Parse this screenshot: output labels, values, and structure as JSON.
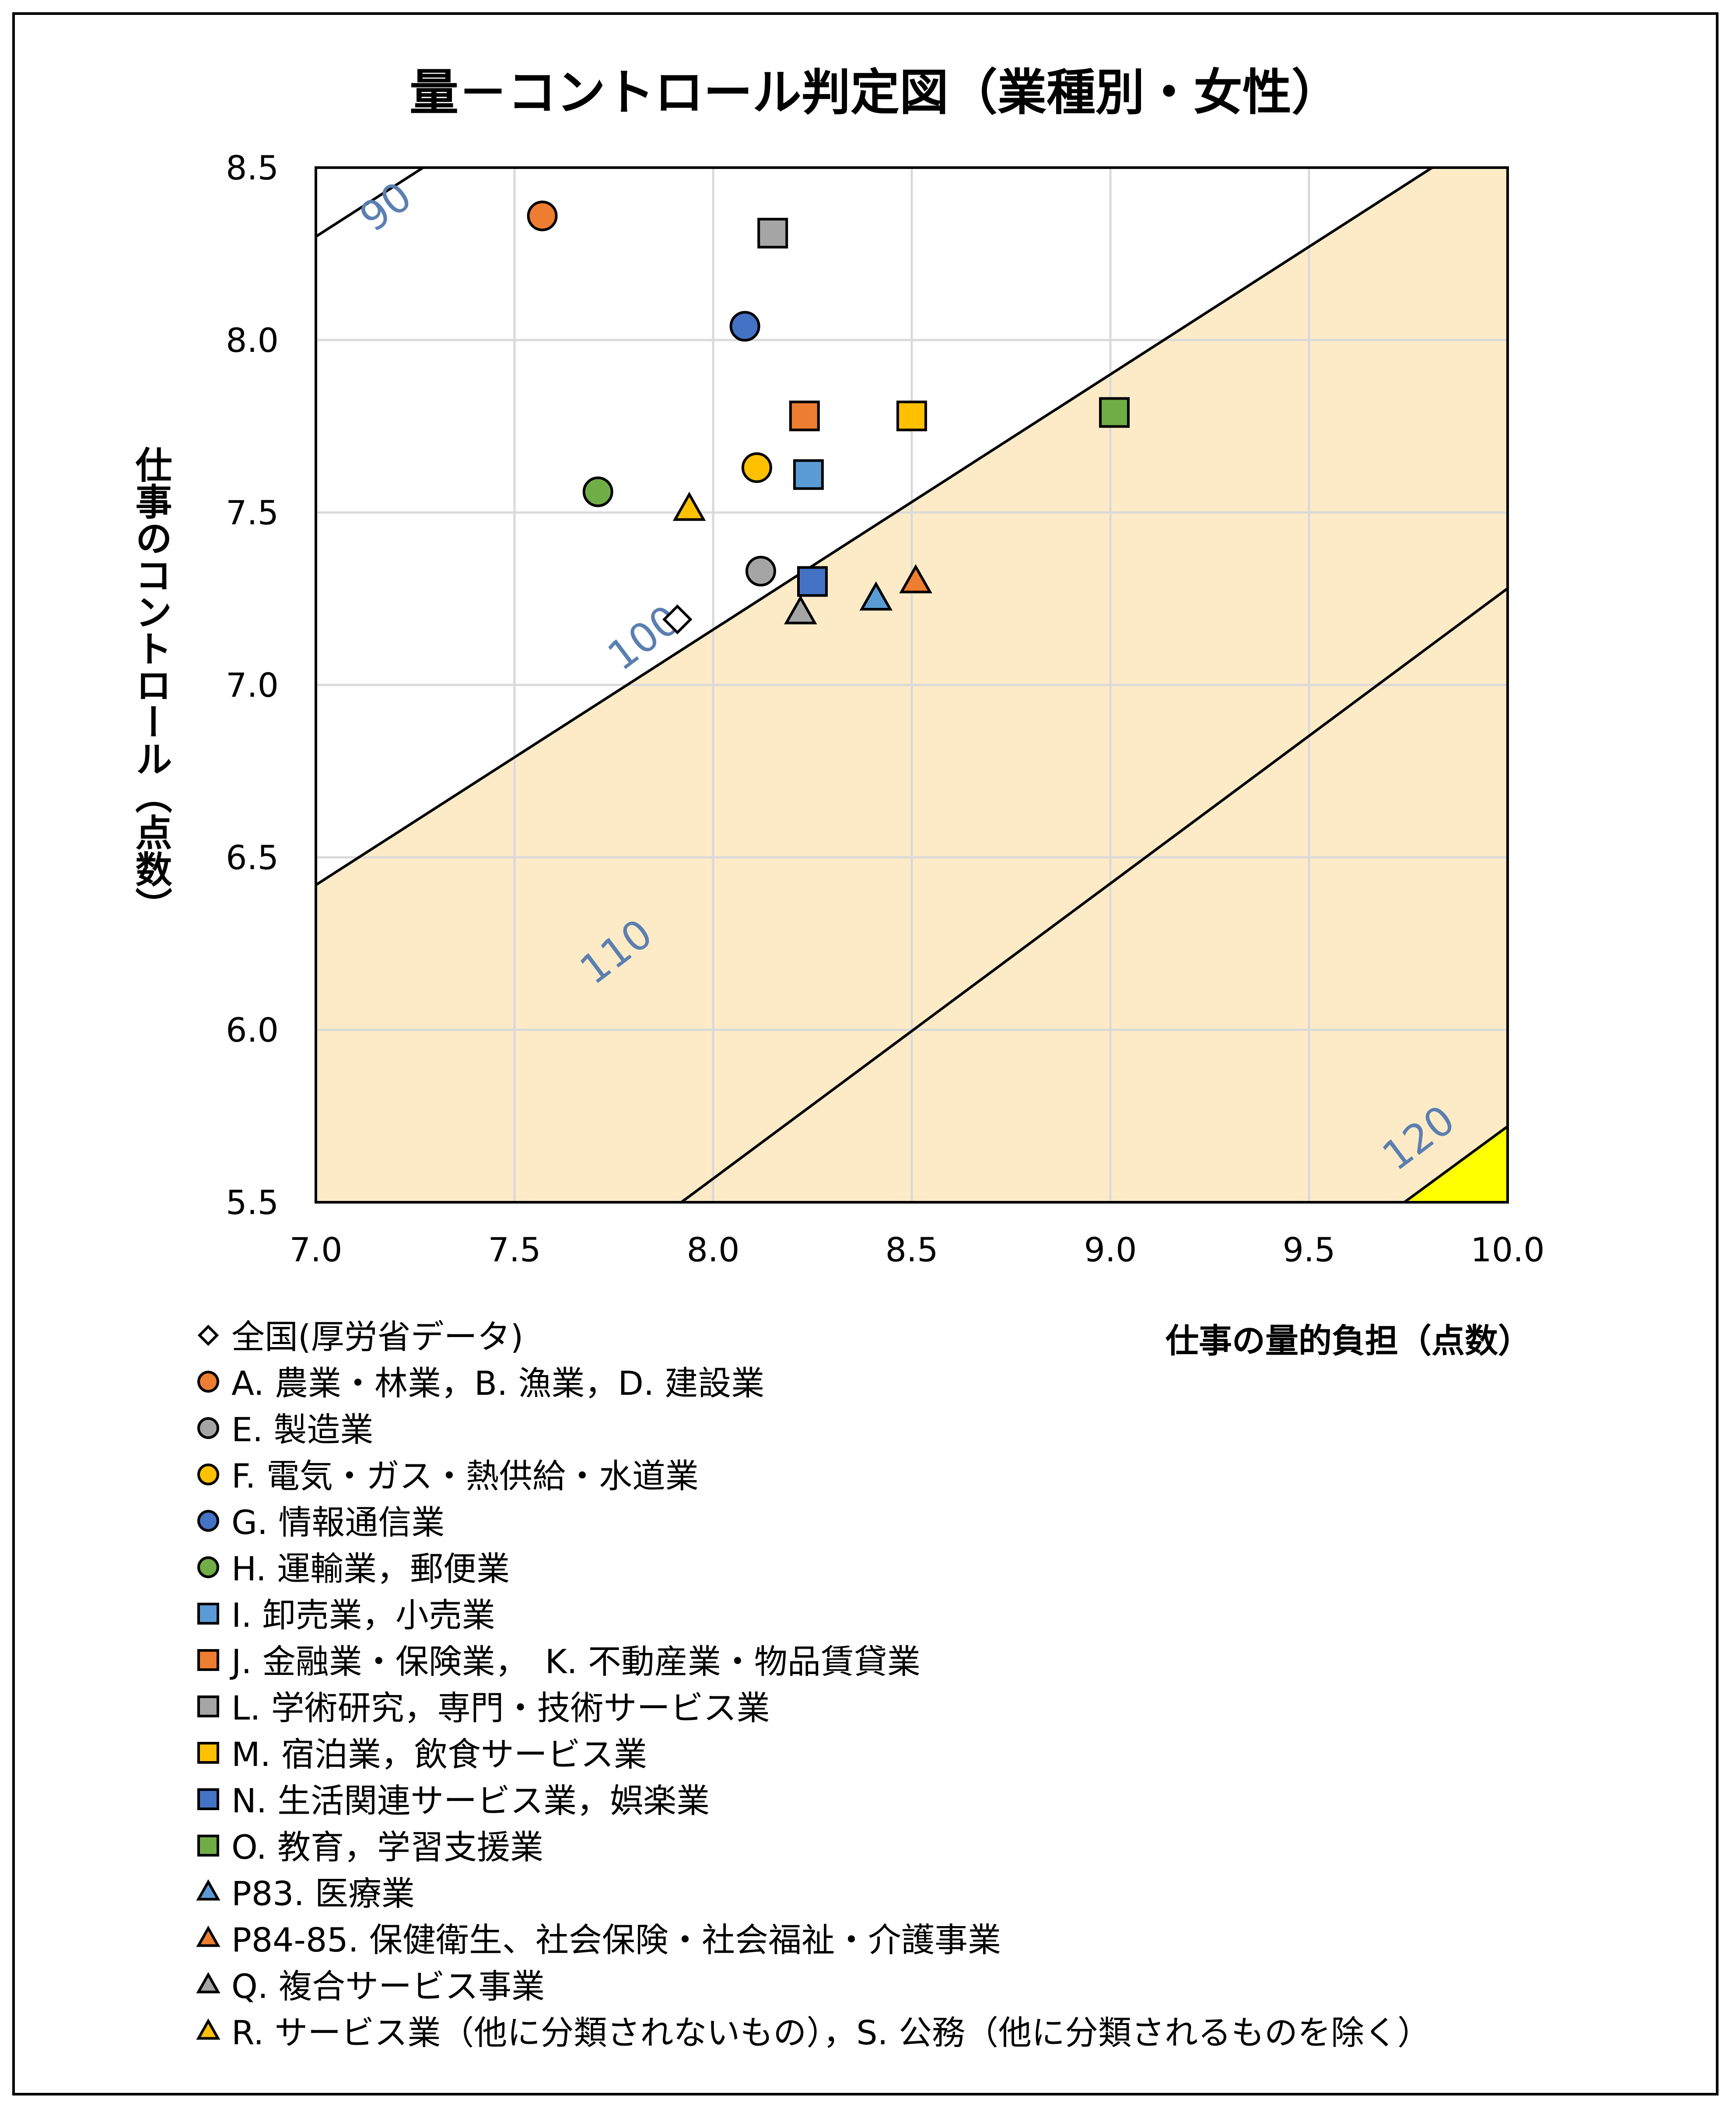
{
  "chart_data": {
    "type": "scatter",
    "title": "量－コントロール判定図（業種別・女性）",
    "xlabel": "仕事の量的負担（点数）",
    "ylabel": "仕事のコントロール（点数）",
    "xlim": [
      7.0,
      10.0
    ],
    "ylim": [
      5.5,
      8.5
    ],
    "xticks": [
      "7.0",
      "7.5",
      "8.0",
      "8.5",
      "9.0",
      "9.5",
      "10.0"
    ],
    "yticks": [
      "5.5",
      "6.0",
      "6.5",
      "7.0",
      "7.5",
      "8.0",
      "8.5"
    ],
    "grid": true,
    "legend_position": "bottom-left",
    "contours": [
      {
        "label": "90",
        "x1": 7.0,
        "y1": 8.3,
        "x2": 7.27,
        "y2": 8.5
      },
      {
        "label": "100",
        "x1": 7.0,
        "y1": 6.42,
        "x2": 9.81,
        "y2": 8.5
      },
      {
        "label": "110",
        "x1": 7.92,
        "y1": 5.5,
        "x2": 10.0,
        "y2": 7.28
      },
      {
        "label": "120",
        "x1": 9.74,
        "y1": 5.5,
        "x2": 10.0,
        "y2": 5.72
      }
    ],
    "contour_label_positions": [
      {
        "label": "90",
        "x": 7.18,
        "y": 8.38
      },
      {
        "label": "100",
        "x": 7.83,
        "y": 7.13
      },
      {
        "label": "110",
        "x": 7.76,
        "y": 6.22
      },
      {
        "label": "120",
        "x": 9.78,
        "y": 5.68
      }
    ],
    "series": [
      {
        "name": "全国(厚労省データ)",
        "marker": "diamond",
        "color": "#ffffff",
        "x": [
          7.91
        ],
        "y": [
          7.19
        ]
      },
      {
        "name": "A. 農業・林業，B. 漁業，D. 建設業",
        "marker": "circle",
        "color": "#ED7D31",
        "x": [
          7.57
        ],
        "y": [
          8.36
        ]
      },
      {
        "name": "E. 製造業",
        "marker": "circle",
        "color": "#A5A5A5",
        "x": [
          8.12
        ],
        "y": [
          7.33
        ]
      },
      {
        "name": "F. 電気・ガス・熱供給・水道業",
        "marker": "circle",
        "color": "#FFC000",
        "x": [
          8.11
        ],
        "y": [
          7.63
        ]
      },
      {
        "name": "G. 情報通信業",
        "marker": "circle",
        "color": "#4472C4",
        "x": [
          8.08
        ],
        "y": [
          8.04
        ]
      },
      {
        "name": "H. 運輸業，郵便業",
        "marker": "circle",
        "color": "#70AD47",
        "x": [
          7.71
        ],
        "y": [
          7.56
        ]
      },
      {
        "name": "I. 卸売業，小売業",
        "marker": "square",
        "color": "#5B9BD5",
        "x": [
          8.24
        ],
        "y": [
          7.61
        ]
      },
      {
        "name": "J. 金融業・保険業，　K. 不動産業・物品賃貸業",
        "marker": "square",
        "color": "#ED7D31",
        "x": [
          8.23
        ],
        "y": [
          7.78
        ]
      },
      {
        "name": "L. 学術研究，専門・技術サービス業",
        "marker": "square",
        "color": "#A5A5A5",
        "x": [
          8.15
        ],
        "y": [
          8.31
        ]
      },
      {
        "name": "M. 宿泊業，飲食サービス業",
        "marker": "square",
        "color": "#FFC000",
        "x": [
          8.5
        ],
        "y": [
          7.78
        ]
      },
      {
        "name": "N. 生活関連サービス業，娯楽業",
        "marker": "square",
        "color": "#4472C4",
        "x": [
          8.25
        ],
        "y": [
          7.3
        ]
      },
      {
        "name": "O. 教育，学習支援業",
        "marker": "square",
        "color": "#70AD47",
        "x": [
          9.01
        ],
        "y": [
          7.79
        ]
      },
      {
        "name": "P83. 医療業",
        "marker": "triangle",
        "color": "#5B9BD5",
        "x": [
          8.41
        ],
        "y": [
          7.25
        ]
      },
      {
        "name": "P84-85. 保健衛生、社会保険・社会福祉・介護事業",
        "marker": "triangle",
        "color": "#ED7D31",
        "x": [
          8.51
        ],
        "y": [
          7.3
        ]
      },
      {
        "name": "Q. 複合サービス事業",
        "marker": "triangle",
        "color": "#A5A5A5",
        "x": [
          8.22
        ],
        "y": [
          7.21
        ]
      },
      {
        "name": "R. サービス業（他に分類されないもの），S. 公務（他に分類されるものを除く）",
        "marker": "triangle",
        "color": "#FFC000",
        "x": [
          7.94
        ],
        "y": [
          7.51
        ]
      }
    ],
    "colors": {
      "zone_high": "#FDEBC8",
      "zone_top": "#FFFF00",
      "contour_label": "#5B7FB0",
      "grid": "#D9D9D9"
    }
  }
}
